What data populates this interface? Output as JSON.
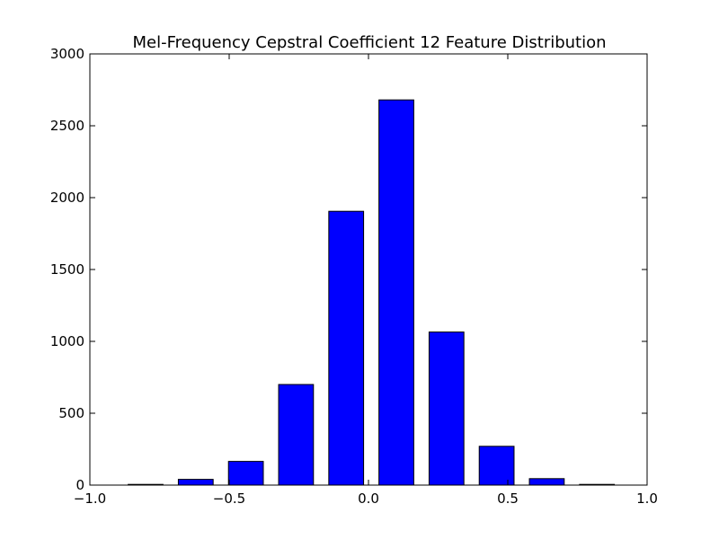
{
  "chart_data": {
    "type": "bar",
    "title": "Mel-Frequency Cepstral Coefficient 12 Feature Distribution",
    "xlabel": "",
    "ylabel": "",
    "xlim": [
      -1.0,
      1.0
    ],
    "ylim": [
      0,
      3000
    ],
    "bar_width": 0.125,
    "x": [
      -0.8,
      -0.62,
      -0.44,
      -0.26,
      -0.08,
      0.1,
      0.28,
      0.46,
      0.64,
      0.82
    ],
    "values": [
      5,
      40,
      165,
      700,
      1905,
      2680,
      1065,
      270,
      45,
      5
    ],
    "xticks": [
      -1.0,
      -0.5,
      0.0,
      0.5,
      1.0
    ],
    "xtick_labels": [
      "−1.0",
      "−0.5",
      "0.0",
      "0.5",
      "1.0"
    ],
    "yticks": [
      0,
      500,
      1000,
      1500,
      2000,
      2500,
      3000
    ],
    "ytick_labels": [
      "0",
      "500",
      "1000",
      "1500",
      "2000",
      "2500",
      "3000"
    ],
    "grid": false,
    "bar_color": "#0000ff",
    "edge_color": "#000000"
  }
}
